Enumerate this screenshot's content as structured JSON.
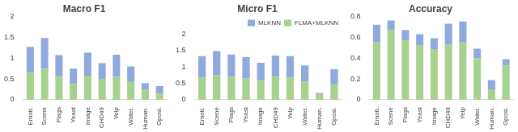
{
  "chart_data": [
    {
      "type": "bar",
      "title": "Macro F1",
      "stacked": true,
      "grid": false,
      "categories": [
        "Emoti.",
        "Scene",
        "Flags",
        "Yeast",
        "Image",
        "CHD49",
        "Yelp",
        "Water.",
        "Human.",
        "Gposi."
      ],
      "ylim": [
        0,
        2
      ],
      "yticks": [
        0,
        0.5,
        1,
        1.5,
        2
      ],
      "series": [
        {
          "name": "FLMA+MLKNN",
          "color": "#a9d18e",
          "values": [
            0.65,
            0.75,
            0.55,
            0.38,
            0.58,
            0.5,
            0.55,
            0.43,
            0.25,
            0.15
          ]
        },
        {
          "name": "MLKNN",
          "color": "#8faadc",
          "values": [
            0.62,
            0.73,
            0.52,
            0.37,
            0.55,
            0.38,
            0.53,
            0.37,
            0.15,
            0.18
          ]
        }
      ]
    },
    {
      "type": "bar",
      "title": "Micro F1",
      "stacked": true,
      "grid": false,
      "legend": "top",
      "categories": [
        "Emoti.",
        "Scene",
        "Flags",
        "Yeast",
        "Image",
        "CHD49",
        "Yelp",
        "Water.",
        "Human.",
        "Gposi."
      ],
      "ylim": [
        0,
        2
      ],
      "yticks": [
        0,
        0.5,
        1,
        1.5,
        2
      ],
      "series": [
        {
          "name": "FLMA+MLKNN",
          "color": "#a9d18e",
          "values": [
            0.68,
            0.75,
            0.7,
            0.65,
            0.58,
            0.7,
            0.68,
            0.55,
            0.15,
            0.47
          ]
        },
        {
          "name": "MLKNN",
          "color": "#8faadc",
          "values": [
            0.65,
            0.73,
            0.68,
            0.65,
            0.55,
            0.65,
            0.65,
            0.5,
            0.05,
            0.46
          ]
        }
      ]
    },
    {
      "type": "bar",
      "title": "Accuracy",
      "stacked": true,
      "grid": false,
      "categories": [
        "Emoti.",
        "Scene",
        "Flags",
        "Yeast",
        "Image",
        "CHD49",
        "Yelp",
        "Water.",
        "Human.",
        "Gposi."
      ],
      "ylim": [
        0,
        0.8
      ],
      "yticks": [
        0,
        0.2,
        0.4,
        0.6,
        0.8
      ],
      "series": [
        {
          "name": "FLMA+MLKNN",
          "color": "#a9d18e",
          "values": [
            0.55,
            0.67,
            0.57,
            0.52,
            0.48,
            0.53,
            0.55,
            0.4,
            0.1,
            0.33
          ]
        },
        {
          "name": "MLKNN",
          "color": "#8faadc",
          "values": [
            0.17,
            0.09,
            0.1,
            0.11,
            0.11,
            0.2,
            0.2,
            0.09,
            0.09,
            0.06
          ]
        }
      ]
    }
  ]
}
